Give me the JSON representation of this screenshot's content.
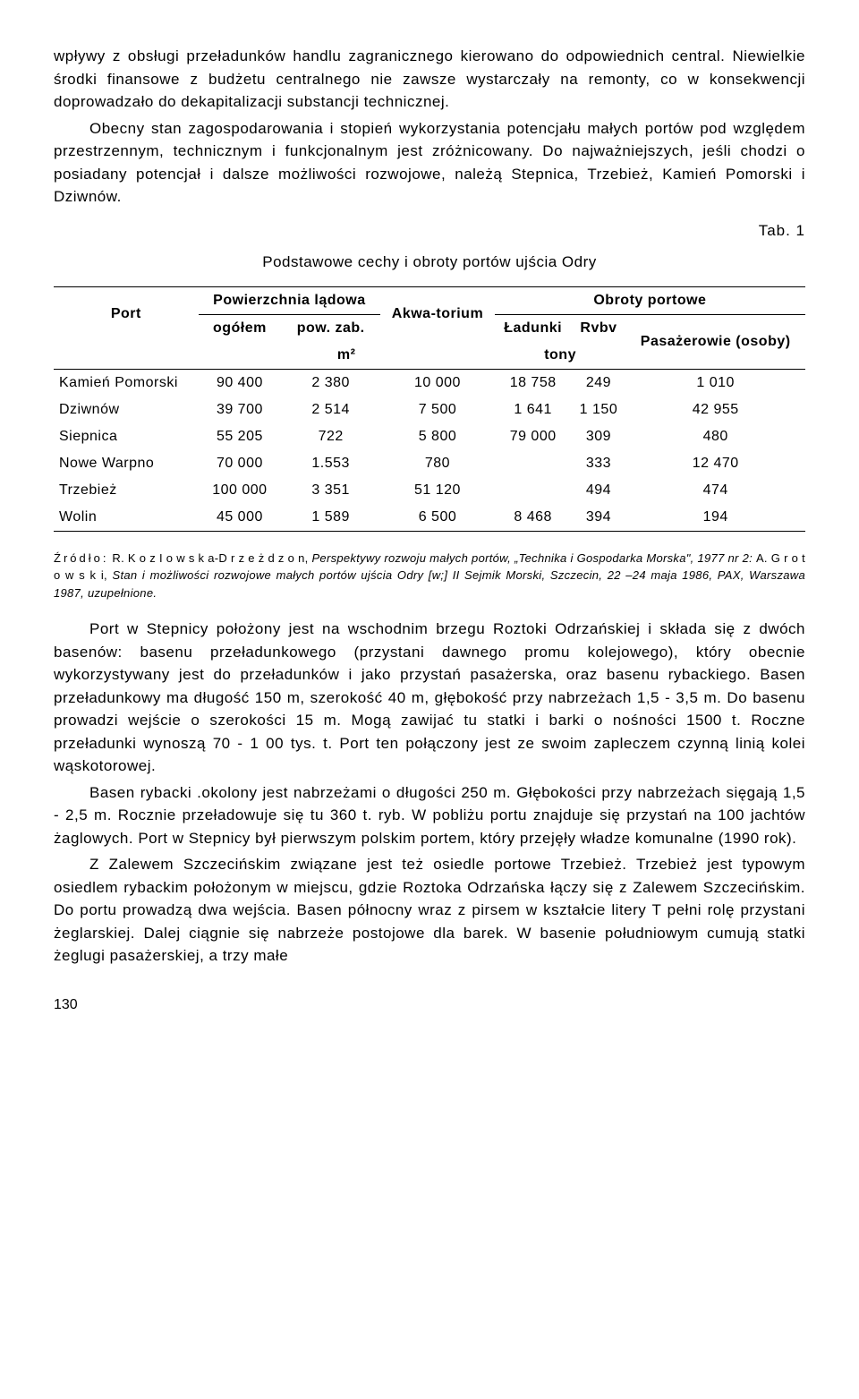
{
  "para1": "wpływy z obsługi przeładunków handlu zagranicznego kierowano do odpowiednich central. Niewielkie środki finansowe z budżetu centralnego nie zawsze wystarczały na remonty, co w konsekwencji doprowadzało do dekapitalizacji substancji technicznej.",
  "para2": "Obecny stan zagospodarowania i stopień wykorzystania potencjału małych portów pod względem przestrzennym, technicznym i funkcjonalnym jest zróżnicowany. Do najważniejszych, jeśli chodzi o posiadany potencjał i dalsze możliwości rozwojowe, należą Stepnica, Trzebież, Kamień Pomorski i Dziwnów.",
  "tab_label": "Tab. 1",
  "table_title": "Podstawowe cechy i obroty portów ujścia Odry",
  "headers": {
    "port": "Port",
    "pow_lad": "Powierzchnia lądowa",
    "akwa": "Akwa-torium",
    "obroty": "Obroty portowe",
    "ogolem": "ogółem",
    "pow_zab": "pow. zab.",
    "ladunki": "Ładunki",
    "rvbv": "Rvbv",
    "pasaz": "Pasażerowie (osoby)",
    "m2": "m²",
    "tony": "tony"
  },
  "rows": [
    {
      "port": "Kamień Pomorski",
      "ogolem": "90 400",
      "zab": "2 380",
      "akwa": "10 000",
      "lad": "18 758",
      "ryb": "249",
      "pas": "1 010"
    },
    {
      "port": "Dziwnów",
      "ogolem": "39 700",
      "zab": "2 514",
      "akwa": "7 500",
      "lad": "1 641",
      "ryb": "1 150",
      "pas": "42 955"
    },
    {
      "port": "Siepnica",
      "ogolem": "55 205",
      "zab": "722",
      "akwa": "5 800",
      "lad": "79 000",
      "ryb": "309",
      "pas": "480"
    },
    {
      "port": "Nowe Warpno",
      "ogolem": "70 000",
      "zab": "1.553",
      "akwa": "780",
      "lad": "",
      "ryb": "333",
      "pas": "12 470"
    },
    {
      "port": "Trzebież",
      "ogolem": "100 000",
      "zab": "3 351",
      "akwa": "51 120",
      "lad": "",
      "ryb": "494",
      "pas": "474"
    },
    {
      "port": "Wolin",
      "ogolem": "45 000",
      "zab": "1 589",
      "akwa": "6 500",
      "lad": "8 468",
      "ryb": "394",
      "pas": "194"
    }
  ],
  "footnote_lead1": "Źródło:",
  "footnote_auth1": "R.  K o z I o w s k a-D r z e ż d z o n,",
  "footnote_text1": " Perspektywy rozwoju małych portów, „Technika i Gospodarka Morska\", 1977 nr 2: ",
  "footnote_auth2": "A.  G r o t o w s k i,",
  "footnote_text2": " Stan i możliwości rozwojowe małych portów ujścia Odry [w;] II Sejmik Morski, Szczecin, 22 –24 maja 1986, PAX, Warszawa 1987, uzupełnione.",
  "para3": "Port w Stepnicy położony jest na wschodnim brzegu Roztoki Odrzańskiej i składa się z dwóch basenów: basenu przeładunkowego (przystani dawnego promu kolejowego), który obecnie wykorzystywany jest do przeładunków i jako przystań pasażerska, oraz basenu rybackiego. Basen przeładunkowy ma długość 150 m, szerokość 40 m, głębokość przy nabrzeżach 1,5 - 3,5 m. Do basenu prowadzi wejście o szerokości 15 m. Mogą zawijać tu statki i barki o nośności 1500 t. Roczne przeładunki wynoszą 70 - 1 00 tys. t. Port ten połączony jest ze swoim zapleczem czynną linią kolei wąskotorowej.",
  "para4": "Basen rybacki .okolony jest nabrzeżami o długości 250 m. Głębokości przy nabrzeżach sięgają 1,5 - 2,5 m. Rocznie przeładowuje się tu 360 t. ryb. W pobliżu portu znajduje się przystań na 100 jachtów żaglowych. Port w Stepnicy był pierwszym polskim portem, który przejęły władze komunalne (1990 rok).",
  "para5": "Z Zalewem Szczecińskim związane jest też osiedle portowe Trzebież. Trzebież jest typowym osiedlem rybackim położonym w miejscu, gdzie Roztoka Odrzańska łączy się z Zalewem Szczecińskim. Do portu prowadzą dwa wejścia. Basen północny wraz z pirsem w kształcie litery T pełni rolę przystani żeglarskiej. Dalej ciągnie się nabrzeże postojowe dla barek. W basenie południowym cumują statki żeglugi pasażerskiej, a trzy małe",
  "page_num": "130"
}
